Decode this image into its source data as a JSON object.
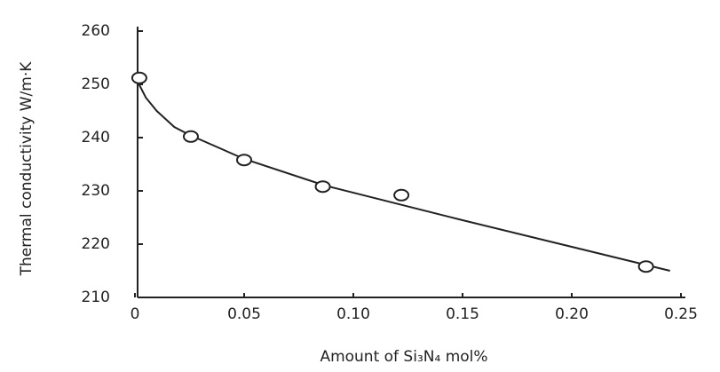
{
  "chart_data": {
    "type": "scatter",
    "y_label": "Thermal conductivity W/m·K",
    "x_label": "Amount of Si₃N₄ mol%",
    "series": [
      {
        "color": "#222222",
        "marker": "open-circle",
        "x": [
          0.002,
          0.0256,
          0.05,
          0.086,
          0.122,
          0.234
        ],
        "values": [
          251.2,
          240.2,
          235.8,
          230.8,
          229.2,
          215.8
        ]
      },
      {
        "color": "#222222",
        "style": "line",
        "x": [
          0.0,
          0.005,
          0.01,
          0.018,
          0.025,
          0.05,
          0.087,
          0.15,
          0.2,
          0.245
        ],
        "values": [
          251.5,
          247.5,
          245,
          242,
          240.5,
          236,
          231,
          224.5,
          219.5,
          215
        ]
      }
    ],
    "xlim": [
      0,
      0.25
    ],
    "ylim": [
      210,
      260
    ],
    "xticks": [
      0,
      0.05,
      {
        "value": 0.1,
        "label": "0.10"
      },
      0.15,
      {
        "value": 0.2,
        "label": "0.20"
      },
      0.25
    ],
    "yticks": [
      210,
      220,
      230,
      240,
      250,
      260
    ],
    "grid": false
  }
}
